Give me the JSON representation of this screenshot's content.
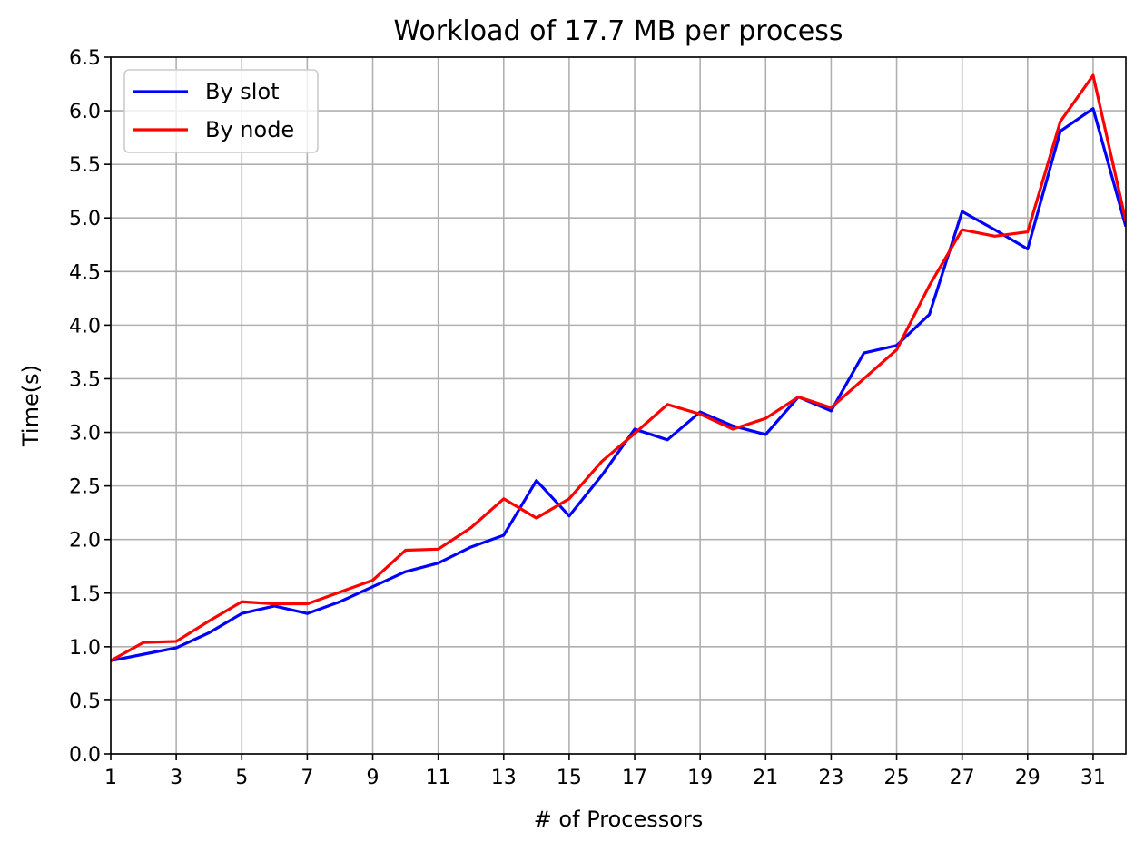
{
  "chart_data": {
    "type": "line",
    "title": "Workload of 17.7 MB per process",
    "xlabel": "# of Processors",
    "ylabel": "Time(s)",
    "xlim": [
      1,
      32
    ],
    "ylim": [
      0,
      6.5
    ],
    "x_ticks": [
      1,
      3,
      5,
      7,
      9,
      11,
      13,
      15,
      17,
      19,
      21,
      23,
      25,
      27,
      29,
      31
    ],
    "y_ticks": [
      "0.0",
      "0.5",
      "1.0",
      "1.5",
      "2.0",
      "2.5",
      "3.0",
      "3.5",
      "4.0",
      "4.5",
      "5.0",
      "5.5",
      "6.0",
      "6.5"
    ],
    "grid": true,
    "legend_position": "top-left",
    "x": [
      1,
      2,
      3,
      4,
      5,
      6,
      7,
      8,
      9,
      10,
      11,
      12,
      13,
      14,
      15,
      16,
      17,
      18,
      19,
      20,
      21,
      22,
      23,
      24,
      25,
      26,
      27,
      28,
      29,
      30,
      31,
      32
    ],
    "series": [
      {
        "name": "By slot",
        "color": "#0000ff",
        "values": [
          0.87,
          0.93,
          0.99,
          1.13,
          1.31,
          1.38,
          1.31,
          1.42,
          1.56,
          1.7,
          1.78,
          1.93,
          2.04,
          2.55,
          2.22,
          2.6,
          3.03,
          2.93,
          3.19,
          3.06,
          2.98,
          3.33,
          3.2,
          3.74,
          3.81,
          4.1,
          5.06,
          4.89,
          4.71,
          5.81,
          6.02,
          4.92
        ]
      },
      {
        "name": "By node",
        "color": "#ff0000",
        "values": [
          0.87,
          1.04,
          1.05,
          1.24,
          1.42,
          1.4,
          1.4,
          1.51,
          1.62,
          1.9,
          1.91,
          2.11,
          2.38,
          2.2,
          2.38,
          2.73,
          2.99,
          3.26,
          3.17,
          3.03,
          3.13,
          3.33,
          3.23,
          3.5,
          3.77,
          4.37,
          4.89,
          4.83,
          4.87,
          5.9,
          6.33,
          4.97
        ]
      }
    ]
  }
}
